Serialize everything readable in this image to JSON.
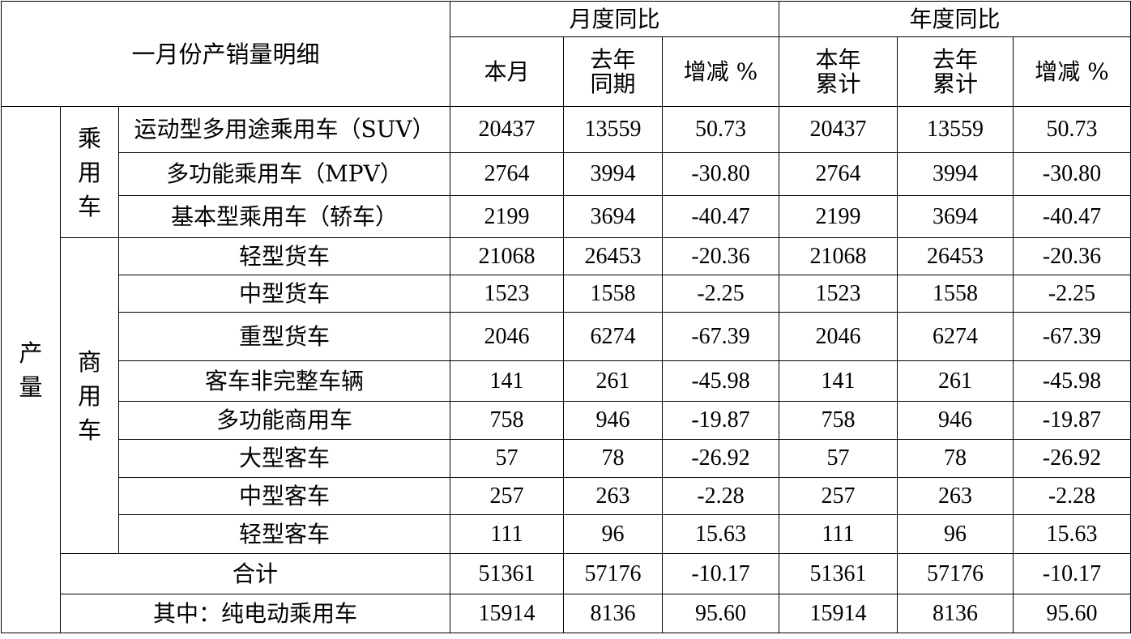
{
  "header": {
    "title": "一月份产销量明细",
    "monthly_group": "月度同比",
    "yearly_group": "年度同比",
    "cols": {
      "this_month": "本月",
      "last_year_same_period_l1": "去年",
      "last_year_same_period_l2": "同期",
      "change_pct_monthly": "增减 %",
      "this_year_cum_l1": "本年",
      "this_year_cum_l2": "累计",
      "last_year_cum_l1": "去年",
      "last_year_cum_l2": "累计",
      "change_pct_yearly": "增减 %"
    }
  },
  "labels": {
    "production": [
      "产",
      "量"
    ],
    "passenger": [
      "乘",
      "用",
      "车"
    ],
    "commercial": [
      "商",
      "用",
      "车"
    ]
  },
  "rows": [
    {
      "name": "运动型多用途乘用车（SUV）",
      "m": "20437",
      "ml": "13559",
      "mc": "50.73",
      "y": "20437",
      "yl": "13559",
      "yc": "50.73"
    },
    {
      "name": "多功能乘用车（MPV）",
      "m": "2764",
      "ml": "3994",
      "mc": "-30.80",
      "y": "2764",
      "yl": "3994",
      "yc": "-30.80"
    },
    {
      "name": "基本型乘用车（轿车）",
      "m": "2199",
      "ml": "3694",
      "mc": "-40.47",
      "y": "2199",
      "yl": "3694",
      "yc": "-40.47"
    },
    {
      "name": "轻型货车",
      "m": "21068",
      "ml": "26453",
      "mc": "-20.36",
      "y": "21068",
      "yl": "26453",
      "yc": "-20.36"
    },
    {
      "name": "中型货车",
      "m": "1523",
      "ml": "1558",
      "mc": "-2.25",
      "y": "1523",
      "yl": "1558",
      "yc": "-2.25"
    },
    {
      "name": "重型货车",
      "m": "2046",
      "ml": "6274",
      "mc": "-67.39",
      "y": "2046",
      "yl": "6274",
      "yc": "-67.39"
    },
    {
      "name": "客车非完整车辆",
      "m": "141",
      "ml": "261",
      "mc": "-45.98",
      "y": "141",
      "yl": "261",
      "yc": "-45.98"
    },
    {
      "name": "多功能商用车",
      "m": "758",
      "ml": "946",
      "mc": "-19.87",
      "y": "758",
      "yl": "946",
      "yc": "-19.87"
    },
    {
      "name": "大型客车",
      "m": "57",
      "ml": "78",
      "mc": "-26.92",
      "y": "57",
      "yl": "78",
      "yc": "-26.92"
    },
    {
      "name": "中型客车",
      "m": "257",
      "ml": "263",
      "mc": "-2.28",
      "y": "257",
      "yl": "263",
      "yc": "-2.28"
    },
    {
      "name": "轻型客车",
      "m": "111",
      "ml": "96",
      "mc": "15.63",
      "y": "111",
      "yl": "96",
      "yc": "15.63"
    },
    {
      "name": "合计",
      "m": "51361",
      "ml": "57176",
      "mc": "-10.17",
      "y": "51361",
      "yl": "57176",
      "yc": "-10.17"
    },
    {
      "name": "其中：纯电动乘用车",
      "m": "15914",
      "ml": "8136",
      "mc": "95.60",
      "y": "15914",
      "yl": "8136",
      "yc": "95.60"
    }
  ]
}
